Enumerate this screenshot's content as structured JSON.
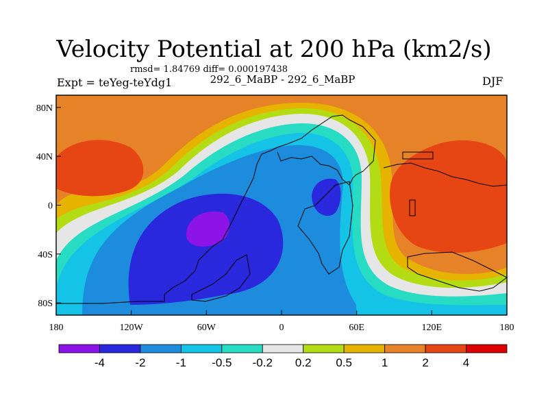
{
  "chart_data": {
    "type": "heatmap",
    "title": "Velocity Potential at 200 hPa (km2/s)",
    "stats_line": "rmsd= 1.84769 diff= 0.000197438",
    "left_label": "Expt = teYeg-teYdg1",
    "center_label": "292_6_MaBP - 292_6_MaBP",
    "right_label": "DJF",
    "x_range": [
      -180,
      180
    ],
    "y_range": [
      -90,
      90
    ],
    "x_ticks": [
      {
        "value": -180,
        "label": "180"
      },
      {
        "value": -120,
        "label": "120W"
      },
      {
        "value": -60,
        "label": "60W"
      },
      {
        "value": 0,
        "label": "0"
      },
      {
        "value": 60,
        "label": "60E"
      },
      {
        "value": 120,
        "label": "120E"
      },
      {
        "value": 180,
        "label": "180"
      }
    ],
    "y_ticks": [
      {
        "value": 80,
        "label": "80N"
      },
      {
        "value": 40,
        "label": "40N"
      },
      {
        "value": 0,
        "label": "0"
      },
      {
        "value": -40,
        "label": "40S"
      },
      {
        "value": -80,
        "label": "80S"
      }
    ],
    "colorbar": {
      "levels": [
        "-4",
        "-2",
        "-1",
        "-0.5",
        "-0.2",
        "0.2",
        "0.5",
        "1",
        "2",
        "4"
      ],
      "colors": [
        "#8c14e6",
        "#2a28dc",
        "#1e8cdc",
        "#14c3e6",
        "#28dcc3",
        "#e6e6e6",
        "#b4dc14",
        "#e6b400",
        "#e68228",
        "#e64614",
        "#dc0000"
      ]
    },
    "field": [
      {
        "name": "high-west",
        "lon": -145,
        "lat": 28,
        "value": 3.2,
        "rx": 38,
        "ry": 26
      },
      {
        "name": "high-east",
        "lon": 118,
        "lat": 22,
        "value": 3.0,
        "rx": 42,
        "ry": 34
      },
      {
        "name": "low-southamerica",
        "lon": -58,
        "lat": -22,
        "value": -4.3,
        "rx": 20,
        "ry": 16
      },
      {
        "name": "low-africa",
        "lon": 42,
        "lat": 5,
        "value": -2.4,
        "rx": 10,
        "ry": 14
      }
    ]
  }
}
